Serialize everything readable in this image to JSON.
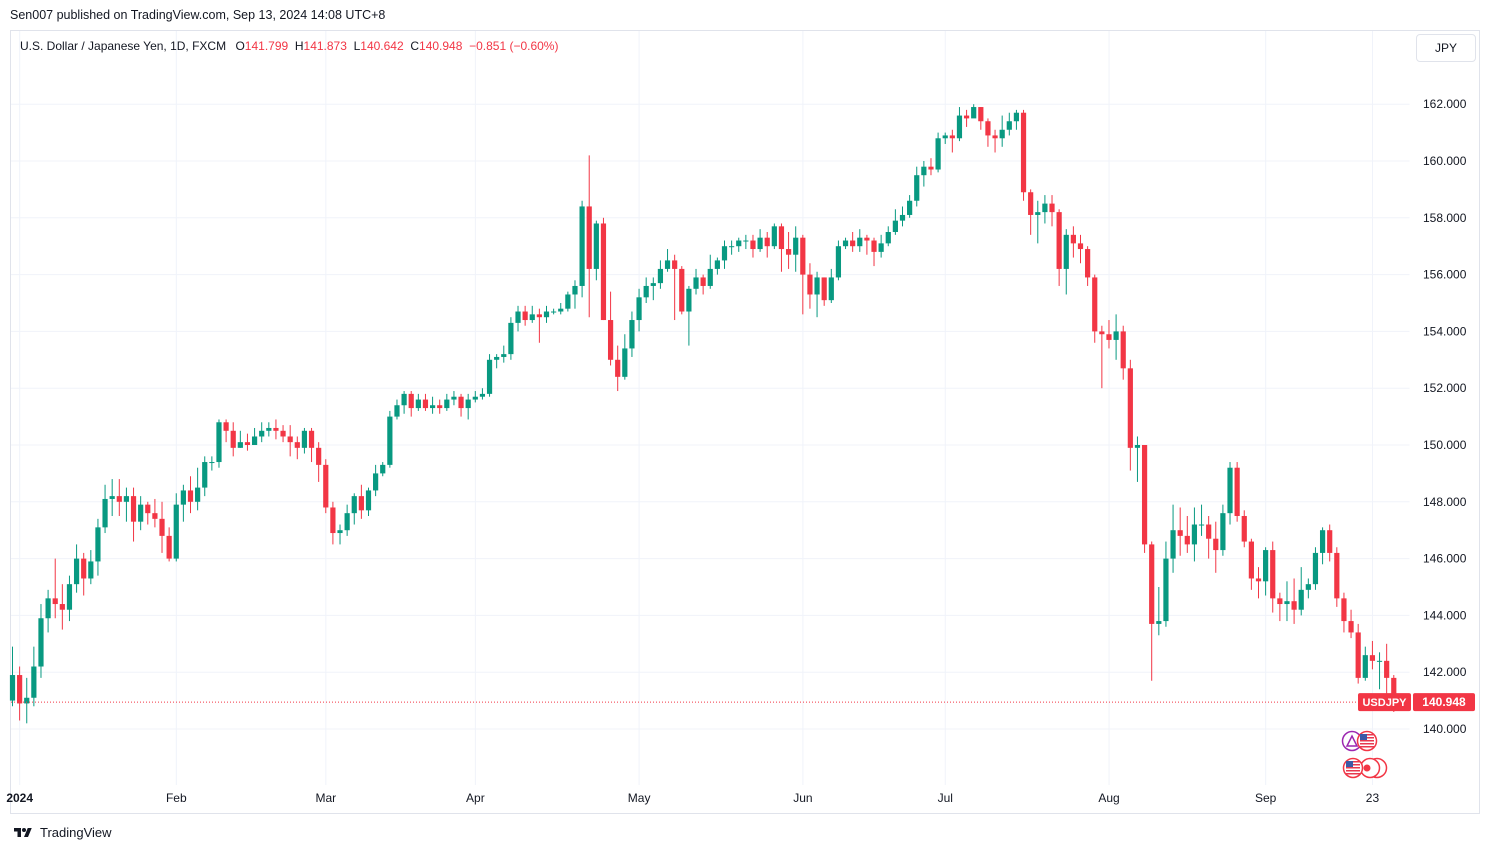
{
  "header": {
    "published_text": "Sen007 published on TradingView.com, Sep 13, 2024 14:08 UTC+8"
  },
  "legend": {
    "symbol_text": "U.S. Dollar / Japanese Yen, 1D, FXCM",
    "open_label": "O",
    "open": "141.799",
    "high_label": "H",
    "high": "141.873",
    "low_label": "L",
    "low": "140.642",
    "close_label": "C",
    "close": "140.948",
    "change": "−0.851 (−0.60%)"
  },
  "currency_button": "JPY",
  "price_tag": {
    "symbol": "USDJPY",
    "price": "140.948",
    "value": 140.948
  },
  "footer": {
    "brand": "TradingView"
  },
  "colors": {
    "up": "#089981",
    "down": "#f23645",
    "grid": "#f0f3fa",
    "text": "#131722"
  },
  "chart_data": {
    "type": "candlestick",
    "ylim": [
      138.5,
      163.5
    ],
    "y_ticks": [
      "140.000",
      "142.000",
      "144.000",
      "146.000",
      "148.000",
      "150.000",
      "152.000",
      "154.000",
      "156.000",
      "158.000",
      "160.000",
      "162.000"
    ],
    "x_ticks": [
      {
        "label": "2024",
        "index": 1,
        "bold": true
      },
      {
        "label": "Feb",
        "index": 23
      },
      {
        "label": "Mar",
        "index": 44
      },
      {
        "label": "Apr",
        "index": 65
      },
      {
        "label": "May",
        "index": 88
      },
      {
        "label": "Jun",
        "index": 111
      },
      {
        "label": "Jul",
        "index": 131
      },
      {
        "label": "Aug",
        "index": 154
      },
      {
        "label": "Sep",
        "index": 176
      },
      {
        "label": "23",
        "index": 191
      }
    ],
    "grid": true,
    "current_price": 140.948,
    "candles": [
      [
        141.0,
        141.9,
        142.9,
        140.8
      ],
      [
        141.9,
        140.9,
        142.2,
        140.3
      ],
      [
        140.9,
        141.1,
        141.8,
        140.2
      ],
      [
        141.1,
        142.2,
        142.9,
        140.8
      ],
      [
        142.2,
        143.9,
        144.4,
        141.8
      ],
      [
        143.9,
        144.6,
        144.9,
        143.4
      ],
      [
        144.6,
        144.4,
        146.0,
        143.9
      ],
      [
        144.4,
        144.2,
        145.1,
        143.5
      ],
      [
        144.2,
        145.1,
        145.4,
        143.8
      ],
      [
        145.1,
        146.0,
        146.5,
        144.8
      ],
      [
        146.0,
        145.3,
        146.2,
        144.7
      ],
      [
        145.3,
        145.9,
        146.3,
        145.1
      ],
      [
        145.9,
        147.1,
        147.4,
        145.4
      ],
      [
        147.1,
        148.1,
        148.6,
        146.9
      ],
      [
        148.1,
        148.2,
        148.8,
        147.5
      ],
      [
        148.2,
        148.0,
        148.8,
        147.5
      ],
      [
        148.0,
        148.2,
        148.5,
        147.3
      ],
      [
        148.2,
        147.3,
        148.5,
        146.6
      ],
      [
        147.3,
        147.9,
        148.2,
        147.0
      ],
      [
        147.9,
        147.6,
        148.0,
        147.2
      ],
      [
        147.6,
        147.4,
        148.1,
        147.1
      ],
      [
        147.4,
        146.8,
        148.0,
        146.2
      ],
      [
        146.8,
        146.0,
        147.1,
        145.9
      ],
      [
        146.0,
        147.9,
        148.3,
        145.9
      ],
      [
        147.9,
        148.4,
        148.6,
        147.3
      ],
      [
        148.4,
        148.0,
        148.9,
        147.6
      ],
      [
        148.0,
        148.5,
        149.2,
        147.7
      ],
      [
        148.5,
        149.4,
        149.6,
        148.2
      ],
      [
        149.4,
        149.4,
        149.6,
        149.1
      ],
      [
        149.4,
        150.8,
        150.9,
        149.2
      ],
      [
        150.8,
        150.5,
        150.9,
        150.1
      ],
      [
        150.5,
        149.9,
        150.8,
        149.6
      ],
      [
        149.9,
        150.1,
        150.5,
        149.9
      ],
      [
        150.1,
        150.0,
        150.4,
        149.8
      ],
      [
        150.0,
        150.3,
        150.6,
        150.0
      ],
      [
        150.3,
        150.5,
        150.8,
        150.1
      ],
      [
        150.5,
        150.6,
        150.8,
        150.3
      ],
      [
        150.6,
        150.5,
        150.9,
        150.2
      ],
      [
        150.5,
        150.3,
        150.7,
        150.1
      ],
      [
        150.3,
        150.1,
        150.7,
        149.6
      ],
      [
        150.1,
        149.9,
        150.3,
        149.5
      ],
      [
        149.9,
        150.5,
        150.6,
        149.7
      ],
      [
        150.5,
        149.9,
        150.6,
        149.4
      ],
      [
        149.9,
        149.3,
        150.1,
        148.7
      ],
      [
        149.3,
        147.8,
        149.5,
        147.6
      ],
      [
        147.8,
        146.9,
        148.0,
        146.5
      ],
      [
        146.9,
        147.0,
        147.2,
        146.5
      ],
      [
        147.0,
        147.6,
        147.9,
        146.8
      ],
      [
        147.6,
        148.2,
        148.3,
        147.2
      ],
      [
        148.2,
        147.7,
        148.6,
        147.4
      ],
      [
        147.7,
        148.4,
        148.5,
        147.5
      ],
      [
        148.4,
        149.0,
        149.3,
        148.2
      ],
      [
        149.0,
        149.3,
        149.4,
        148.9
      ],
      [
        149.3,
        151.0,
        151.2,
        149.2
      ],
      [
        151.0,
        151.4,
        151.6,
        150.9
      ],
      [
        151.4,
        151.8,
        151.9,
        151.1
      ],
      [
        151.8,
        151.3,
        151.9,
        151.0
      ],
      [
        151.3,
        151.6,
        151.8,
        151.2
      ],
      [
        151.6,
        151.3,
        151.8,
        151.2
      ],
      [
        151.3,
        151.4,
        151.7,
        151.1
      ],
      [
        151.4,
        151.3,
        151.6,
        151.1
      ],
      [
        151.3,
        151.6,
        151.8,
        151.2
      ],
      [
        151.6,
        151.7,
        151.9,
        151.4
      ],
      [
        151.7,
        151.3,
        151.8,
        151.0
      ],
      [
        151.3,
        151.6,
        151.8,
        150.9
      ],
      [
        151.6,
        151.7,
        151.9,
        151.5
      ],
      [
        151.7,
        151.8,
        152.0,
        151.6
      ],
      [
        151.8,
        153.0,
        153.2,
        151.7
      ],
      [
        153.0,
        153.1,
        153.2,
        152.7
      ],
      [
        153.1,
        153.2,
        153.5,
        152.9
      ],
      [
        153.2,
        154.3,
        154.5,
        153.0
      ],
      [
        154.3,
        154.7,
        154.9,
        154.0
      ],
      [
        154.7,
        154.4,
        154.9,
        154.2
      ],
      [
        154.4,
        154.6,
        154.9,
        154.3
      ],
      [
        154.6,
        154.5,
        154.8,
        153.6
      ],
      [
        154.5,
        154.7,
        154.9,
        154.3
      ],
      [
        154.7,
        154.7,
        154.8,
        154.6
      ],
      [
        154.7,
        154.8,
        155.0,
        154.6
      ],
      [
        154.8,
        155.3,
        155.4,
        154.7
      ],
      [
        155.3,
        155.6,
        155.8,
        154.8
      ],
      [
        155.6,
        158.4,
        158.6,
        155.2
      ],
      [
        158.4,
        156.2,
        160.2,
        154.5
      ],
      [
        156.2,
        157.8,
        157.9,
        155.8
      ],
      [
        157.8,
        154.4,
        158.0,
        154.4
      ],
      [
        154.4,
        153.0,
        155.4,
        152.8
      ],
      [
        153.0,
        152.4,
        153.5,
        151.9
      ],
      [
        152.4,
        153.4,
        153.9,
        152.3
      ],
      [
        153.4,
        154.4,
        154.7,
        153.1
      ],
      [
        154.4,
        155.2,
        155.5,
        154.0
      ],
      [
        155.2,
        155.6,
        155.9,
        155.0
      ],
      [
        155.6,
        155.7,
        155.9,
        155.1
      ],
      [
        155.7,
        156.2,
        156.5,
        155.5
      ],
      [
        156.2,
        156.5,
        156.9,
        156.1
      ],
      [
        156.5,
        156.2,
        156.7,
        154.4
      ],
      [
        156.2,
        154.7,
        156.3,
        154.6
      ],
      [
        154.7,
        155.5,
        155.6,
        153.5
      ],
      [
        155.5,
        155.9,
        156.2,
        155.3
      ],
      [
        155.9,
        155.6,
        156.0,
        155.3
      ],
      [
        155.6,
        156.2,
        156.7,
        155.5
      ],
      [
        156.2,
        156.5,
        156.6,
        156.0
      ],
      [
        156.5,
        157.0,
        157.2,
        156.2
      ],
      [
        157.0,
        157.0,
        157.2,
        156.7
      ],
      [
        157.0,
        157.2,
        157.3,
        156.8
      ],
      [
        157.2,
        157.2,
        157.4,
        156.9
      ],
      [
        157.2,
        156.9,
        157.4,
        156.6
      ],
      [
        156.9,
        157.3,
        157.6,
        156.8
      ],
      [
        157.3,
        157.0,
        157.5,
        156.6
      ],
      [
        157.0,
        157.7,
        157.8,
        156.9
      ],
      [
        157.7,
        156.9,
        157.8,
        156.1
      ],
      [
        156.9,
        156.7,
        157.5,
        156.2
      ],
      [
        156.7,
        157.3,
        157.7,
        156.1
      ],
      [
        157.3,
        156.0,
        157.4,
        154.6
      ],
      [
        156.0,
        155.3,
        156.4,
        154.8
      ],
      [
        155.3,
        155.9,
        156.1,
        154.5
      ],
      [
        155.9,
        155.1,
        155.9,
        154.9
      ],
      [
        155.1,
        155.9,
        156.2,
        155.0
      ],
      [
        155.9,
        157.0,
        157.2,
        155.8
      ],
      [
        157.0,
        157.2,
        157.3,
        156.9
      ],
      [
        157.2,
        157.0,
        157.5,
        156.8
      ],
      [
        157.0,
        157.3,
        157.6,
        156.8
      ],
      [
        157.3,
        157.2,
        157.4,
        156.7
      ],
      [
        157.2,
        156.8,
        157.3,
        156.3
      ],
      [
        156.8,
        157.1,
        157.4,
        156.6
      ],
      [
        157.1,
        157.5,
        157.7,
        157.0
      ],
      [
        157.5,
        157.9,
        158.3,
        157.4
      ],
      [
        157.9,
        158.1,
        158.4,
        157.7
      ],
      [
        158.1,
        158.6,
        158.8,
        158.0
      ],
      [
        158.6,
        159.5,
        159.8,
        158.4
      ],
      [
        159.5,
        159.8,
        160.0,
        159.1
      ],
      [
        159.8,
        159.7,
        160.1,
        159.5
      ],
      [
        159.7,
        160.8,
        161.0,
        159.6
      ],
      [
        160.8,
        160.9,
        161.0,
        160.6
      ],
      [
        160.9,
        160.8,
        161.1,
        160.3
      ],
      [
        160.8,
        161.6,
        161.9,
        160.7
      ],
      [
        161.6,
        161.5,
        161.8,
        161.2
      ],
      [
        161.5,
        161.9,
        162.0,
        161.6
      ],
      [
        161.9,
        161.4,
        161.9,
        161.1
      ],
      [
        161.4,
        160.9,
        161.5,
        160.5
      ],
      [
        160.9,
        160.8,
        161.1,
        160.3
      ],
      [
        160.8,
        161.1,
        161.6,
        160.5
      ],
      [
        161.1,
        161.4,
        161.7,
        160.9
      ],
      [
        161.4,
        161.7,
        161.8,
        161.1
      ],
      [
        161.7,
        158.9,
        161.8,
        158.6
      ],
      [
        158.9,
        158.1,
        159.0,
        157.4
      ],
      [
        158.1,
        158.2,
        158.6,
        157.1
      ],
      [
        158.2,
        158.5,
        158.8,
        157.8
      ],
      [
        158.5,
        158.2,
        158.8,
        157.7
      ],
      [
        158.2,
        156.2,
        158.3,
        155.6
      ],
      [
        156.2,
        157.4,
        157.6,
        155.3
      ],
      [
        157.4,
        157.1,
        157.7,
        156.6
      ],
      [
        157.1,
        156.9,
        157.4,
        156.4
      ],
      [
        156.9,
        155.9,
        157.0,
        155.6
      ],
      [
        155.9,
        154.0,
        156.0,
        153.6
      ],
      [
        154.0,
        153.9,
        154.2,
        152.0
      ],
      [
        153.9,
        153.7,
        154.4,
        153.4
      ],
      [
        153.7,
        154.0,
        154.6,
        153.0
      ],
      [
        154.0,
        152.7,
        154.2,
        152.3
      ],
      [
        152.7,
        149.9,
        153.0,
        149.1
      ],
      [
        149.9,
        150.0,
        150.3,
        148.7
      ],
      [
        150.0,
        146.5,
        150.0,
        146.2
      ],
      [
        146.5,
        143.7,
        146.6,
        141.7
      ],
      [
        143.7,
        143.8,
        145.0,
        143.3
      ],
      [
        143.8,
        146.0,
        146.6,
        143.6
      ],
      [
        146.0,
        147.0,
        147.9,
        145.5
      ],
      [
        147.0,
        146.8,
        147.8,
        146.1
      ],
      [
        146.8,
        146.5,
        147.5,
        146.2
      ],
      [
        146.5,
        147.2,
        147.8,
        145.9
      ],
      [
        147.2,
        147.2,
        147.9,
        146.8
      ],
      [
        147.2,
        146.7,
        147.5,
        146.0
      ],
      [
        146.7,
        146.3,
        147.3,
        145.5
      ],
      [
        146.3,
        147.6,
        147.9,
        146.1
      ],
      [
        147.6,
        149.2,
        149.4,
        147.2
      ],
      [
        149.2,
        147.5,
        149.4,
        147.3
      ],
      [
        147.5,
        146.6,
        147.7,
        146.4
      ],
      [
        146.6,
        145.3,
        146.7,
        144.9
      ],
      [
        145.3,
        145.2,
        145.7,
        144.6
      ],
      [
        145.2,
        146.3,
        146.4,
        144.7
      ],
      [
        146.3,
        144.6,
        146.6,
        144.1
      ],
      [
        144.6,
        144.4,
        144.8,
        143.8
      ],
      [
        144.4,
        144.5,
        145.2,
        143.8
      ],
      [
        144.5,
        144.2,
        145.3,
        143.7
      ],
      [
        144.2,
        144.9,
        145.7,
        144.0
      ],
      [
        144.9,
        145.1,
        145.3,
        144.6
      ],
      [
        145.1,
        146.2,
        146.4,
        144.9
      ],
      [
        146.2,
        147.0,
        147.1,
        145.8
      ],
      [
        147.0,
        146.2,
        147.2,
        145.9
      ],
      [
        146.2,
        144.6,
        146.4,
        144.3
      ],
      [
        144.6,
        143.8,
        144.8,
        143.4
      ],
      [
        143.8,
        143.4,
        144.2,
        143.2
      ],
      [
        143.4,
        141.8,
        143.7,
        141.6
      ],
      [
        141.8,
        142.6,
        142.9,
        141.7
      ],
      [
        142.6,
        142.4,
        143.1,
        142.1
      ],
      [
        142.4,
        142.4,
        142.7,
        141.4
      ],
      [
        142.4,
        141.8,
        143.0,
        140.7
      ],
      [
        141.8,
        140.948,
        141.9,
        140.6
      ]
    ]
  }
}
